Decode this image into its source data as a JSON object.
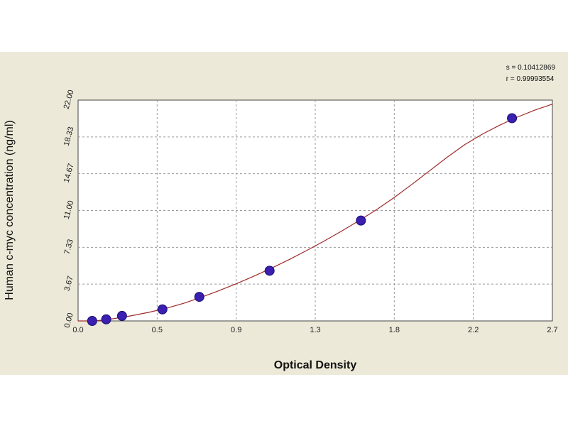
{
  "stats": {
    "s_line": "s = 0.10412869",
    "r_line": "r = 0.99993554"
  },
  "chart_data": {
    "type": "scatter",
    "xlabel": "Optical Density",
    "ylabel": "Human c-myc concentration (ng/ml)",
    "xlim": [
      0.0,
      2.7
    ],
    "ylim": [
      0.0,
      22.0
    ],
    "x_ticks": [
      "0.0",
      "0.5",
      "0.9",
      "1.3",
      "1.8",
      "2.2",
      "2.7"
    ],
    "x_tick_values": [
      0.0,
      0.45,
      0.9,
      1.35,
      1.8,
      2.25,
      2.7
    ],
    "y_ticks": [
      "0.00",
      "3.67",
      "7.33",
      "11.00",
      "14.67",
      "18.33",
      "22.00"
    ],
    "y_tick_values": [
      0.0,
      3.67,
      7.33,
      11.0,
      14.67,
      18.33,
      22.0
    ],
    "grid": true,
    "points": [
      {
        "x": 0.08,
        "y": 0.0
      },
      {
        "x": 0.16,
        "y": 0.16
      },
      {
        "x": 0.25,
        "y": 0.5
      },
      {
        "x": 0.48,
        "y": 1.15
      },
      {
        "x": 0.69,
        "y": 2.4
      },
      {
        "x": 1.09,
        "y": 5.0
      },
      {
        "x": 1.61,
        "y": 10.0
      },
      {
        "x": 2.47,
        "y": 20.2
      }
    ],
    "fit_curve": {
      "type": "four-parameter logistic",
      "x": [
        0.0,
        0.1,
        0.2,
        0.3,
        0.4,
        0.5,
        0.6,
        0.7,
        0.8,
        0.9,
        1.0,
        1.1,
        1.2,
        1.3,
        1.4,
        1.5,
        1.6,
        1.7,
        1.8,
        1.9,
        2.0,
        2.1,
        2.2,
        2.3,
        2.4,
        2.5,
        2.6,
        2.7
      ],
      "y": [
        -0.2,
        0.0,
        0.22,
        0.5,
        0.85,
        1.25,
        1.75,
        2.35,
        3.0,
        3.7,
        4.45,
        5.25,
        6.1,
        7.0,
        7.95,
        8.95,
        10.0,
        11.1,
        12.3,
        13.6,
        14.95,
        16.3,
        17.55,
        18.6,
        19.5,
        20.3,
        21.0,
        21.6
      ]
    },
    "colors": {
      "point": "#3a1fb0",
      "curve": "#9e2a2a",
      "grid": "#9a9a9a",
      "panel": "#ece9d8"
    }
  }
}
